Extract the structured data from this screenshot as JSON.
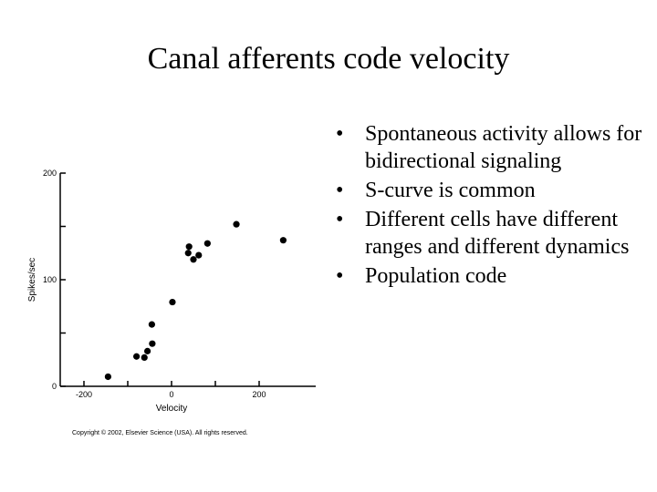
{
  "slide": {
    "title": "Canal afferents code velocity",
    "bullets": [
      "Spontaneous activity allows for bidirectional signaling",
      "S-curve is common",
      "Different cells have different ranges and different dynamics",
      "Population code"
    ],
    "bullet_glyph": "•"
  },
  "chart_data": {
    "type": "scatter",
    "title": "",
    "xlabel": "Velocity",
    "ylabel": "Spikes/sec",
    "xlim": [
      -260,
      300
    ],
    "ylim": [
      0,
      200
    ],
    "xticks": [
      -200,
      -100,
      0,
      100,
      200
    ],
    "yticks": [
      0,
      50,
      100,
      150,
      200
    ],
    "xtick_labels": [
      "-200",
      "0",
      "200"
    ],
    "ytick_labels": [
      "0",
      "100",
      "200"
    ],
    "grid": false,
    "point_color": "#000000",
    "points": [
      {
        "x": -145,
        "y": 9
      },
      {
        "x": -80,
        "y": 28
      },
      {
        "x": -62,
        "y": 27
      },
      {
        "x": -55,
        "y": 33
      },
      {
        "x": -44,
        "y": 40
      },
      {
        "x": -45,
        "y": 58
      },
      {
        "x": 2,
        "y": 79
      },
      {
        "x": 38,
        "y": 125
      },
      {
        "x": 40,
        "y": 131
      },
      {
        "x": 50,
        "y": 119
      },
      {
        "x": 62,
        "y": 123
      },
      {
        "x": 82,
        "y": 134
      },
      {
        "x": 148,
        "y": 152
      },
      {
        "x": 255,
        "y": 137
      }
    ],
    "copyright": "Copyright © 2002, Elsevier Science (USA). All rights reserved."
  }
}
